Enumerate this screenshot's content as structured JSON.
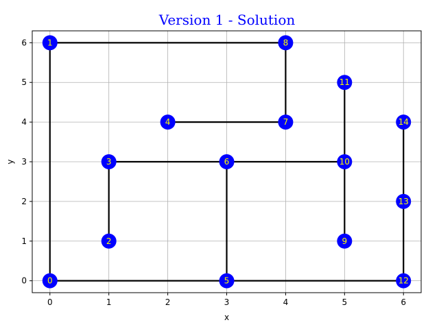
{
  "chart_data": {
    "type": "scatter",
    "title": "Version 1 - Solution",
    "xlabel": "x",
    "ylabel": "y",
    "xlim": [
      -0.3,
      6.3
    ],
    "ylim": [
      -0.3,
      6.3
    ],
    "xticks": [
      0,
      1,
      2,
      3,
      4,
      5,
      6
    ],
    "yticks": [
      0,
      1,
      2,
      3,
      4,
      5,
      6
    ],
    "grid": true,
    "nodes": [
      {
        "id": "0",
        "x": 0,
        "y": 0
      },
      {
        "id": "1",
        "x": 0,
        "y": 6
      },
      {
        "id": "2",
        "x": 1,
        "y": 1
      },
      {
        "id": "3",
        "x": 1,
        "y": 3
      },
      {
        "id": "4",
        "x": 2,
        "y": 4
      },
      {
        "id": "5",
        "x": 3,
        "y": 0
      },
      {
        "id": "6",
        "x": 3,
        "y": 3
      },
      {
        "id": "7",
        "x": 4,
        "y": 4
      },
      {
        "id": "8",
        "x": 4,
        "y": 6
      },
      {
        "id": "9",
        "x": 5,
        "y": 1
      },
      {
        "id": "10",
        "x": 5,
        "y": 3
      },
      {
        "id": "11",
        "x": 5,
        "y": 5
      },
      {
        "id": "12",
        "x": 6,
        "y": 0
      },
      {
        "id": "13",
        "x": 6,
        "y": 2
      },
      {
        "id": "14",
        "x": 6,
        "y": 4
      }
    ],
    "edges": [
      [
        "0",
        "1"
      ],
      [
        "1",
        "8"
      ],
      [
        "8",
        "7"
      ],
      [
        "7",
        "4"
      ],
      [
        "0",
        "5"
      ],
      [
        "5",
        "12"
      ],
      [
        "5",
        "6"
      ],
      [
        "3",
        "6"
      ],
      [
        "6",
        "10"
      ],
      [
        "2",
        "3"
      ],
      [
        "11",
        "10"
      ],
      [
        "10",
        "9"
      ],
      [
        "12",
        "13"
      ],
      [
        "13",
        "14"
      ]
    ]
  },
  "colors": {
    "title": "#0000ff",
    "node_fill": "#0000ff",
    "node_label": "#ffff00",
    "edge": "#000000",
    "grid": "#b0b0b0"
  }
}
